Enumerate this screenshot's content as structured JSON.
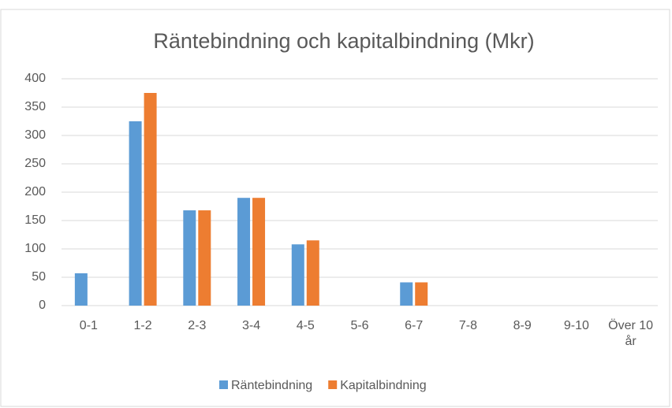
{
  "chart_data": {
    "type": "bar",
    "title": "Räntebindning och kapitalbindning (Mkr)",
    "categories": [
      "0-1",
      "1-2",
      "2-3",
      "3-4",
      "4-5",
      "5-6",
      "6-7",
      "7-8",
      "8-9",
      "9-10",
      "Över 10 år"
    ],
    "series": [
      {
        "name": "Räntebindning",
        "color": "#5b9bd5",
        "values": [
          57,
          325,
          168,
          190,
          108,
          0,
          41,
          0,
          0,
          0,
          0
        ]
      },
      {
        "name": "Kapitalbindning",
        "color": "#ed7d31",
        "values": [
          0,
          375,
          168,
          190,
          115,
          0,
          41,
          0,
          0,
          0,
          0
        ]
      }
    ],
    "ylim": [
      0,
      400
    ],
    "yticks": [
      0,
      50,
      100,
      150,
      200,
      250,
      300,
      350,
      400
    ],
    "grid": true,
    "legend": "bottom"
  }
}
